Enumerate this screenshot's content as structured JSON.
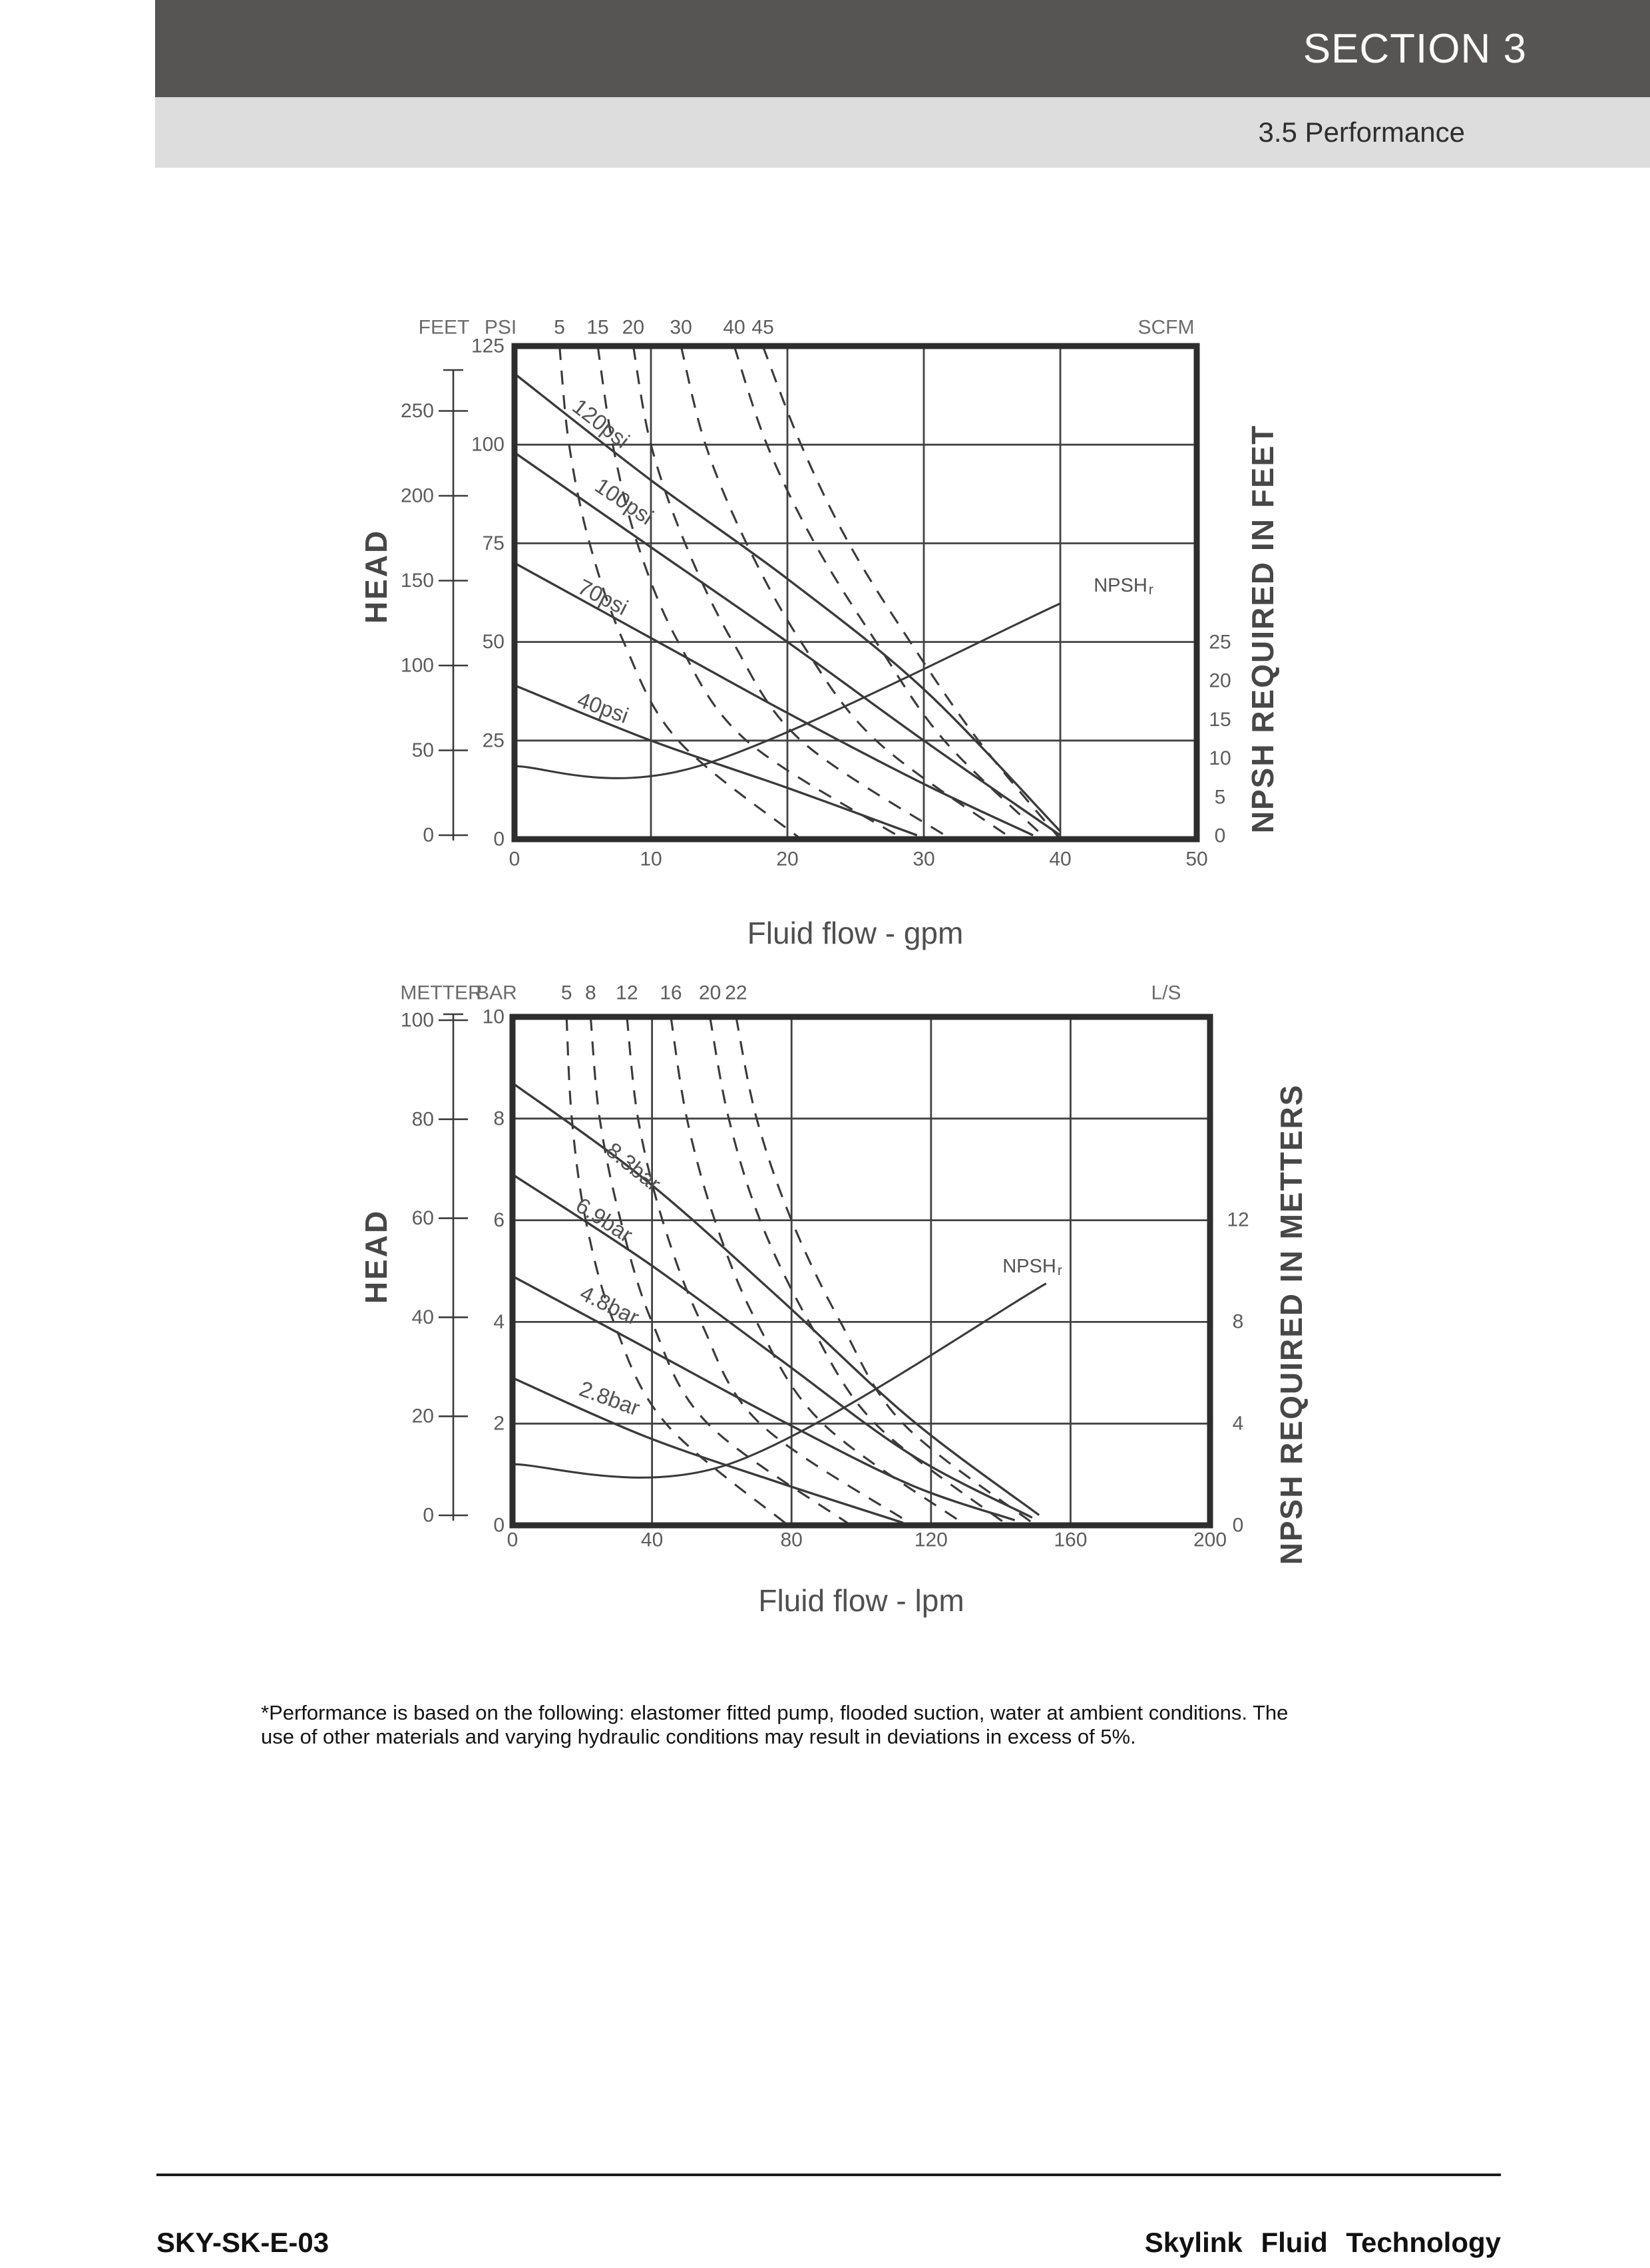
{
  "header": {
    "section": "SECTION 3",
    "subsection": "3.5 Performance"
  },
  "chart_data": [
    {
      "type": "line",
      "id": "imperial",
      "x_label": "Fluid flow - gpm",
      "x_range": [
        0,
        50
      ],
      "x_ticks": [
        0,
        10,
        20,
        30,
        40,
        50
      ],
      "head_axis": {
        "label": "HEAD",
        "inner_unit": "PSI",
        "inner_ticks": [
          0,
          25,
          50,
          75,
          100,
          125
        ],
        "inner_range": [
          0,
          125
        ],
        "outer_unit": "FEET",
        "outer_ticks": [
          0,
          50,
          100,
          150,
          200,
          250
        ]
      },
      "npsh_axis": {
        "title": "NPSH REQUIRED IN FEET",
        "ticks": [
          0,
          5,
          10,
          15,
          20,
          25
        ]
      },
      "air_axis": {
        "unit": "SCFM",
        "labels": [
          {
            "value": "5",
            "flow": 3.3
          },
          {
            "value": "15",
            "flow": 6.1
          },
          {
            "value": "20",
            "flow": 8.7
          },
          {
            "value": "30",
            "flow": 12.2
          },
          {
            "value": "40",
            "flow": 16.1
          },
          {
            "value": "45",
            "flow": 18.2
          }
        ]
      },
      "pressure_curves": [
        {
          "label": "120psi",
          "points": [
            [
              0,
              118
            ],
            [
              10,
              91
            ],
            [
              20,
              66
            ],
            [
              30,
              38
            ],
            [
              40,
              2
            ]
          ]
        },
        {
          "label": "100psi",
          "points": [
            [
              0,
              98
            ],
            [
              10,
              74
            ],
            [
              20,
              50
            ],
            [
              30,
              25
            ],
            [
              40,
              1
            ]
          ]
        },
        {
          "label": "70psi",
          "points": [
            [
              0,
              70
            ],
            [
              10,
              51
            ],
            [
              20,
              32
            ],
            [
              30,
              14
            ],
            [
              38,
              1
            ]
          ]
        },
        {
          "label": "40psi",
          "points": [
            [
              0,
              39
            ],
            [
              10,
              25
            ],
            [
              20,
              13
            ],
            [
              29.5,
              1
            ]
          ]
        }
      ],
      "air_curves": [
        {
          "label": "5",
          "points": [
            [
              3.3,
              125
            ],
            [
              4,
              100
            ],
            [
              5.5,
              75
            ],
            [
              8,
              50
            ],
            [
              12,
              25
            ],
            [
              21,
              0
            ]
          ]
        },
        {
          "label": "15",
          "points": [
            [
              6.1,
              125
            ],
            [
              7.2,
              100
            ],
            [
              9,
              75
            ],
            [
              12,
              50
            ],
            [
              17,
              25
            ],
            [
              28.5,
              0
            ]
          ]
        },
        {
          "label": "20",
          "points": [
            [
              8.7,
              125
            ],
            [
              10,
              100
            ],
            [
              12.5,
              75
            ],
            [
              16,
              50
            ],
            [
              21,
              25
            ],
            [
              32,
              0
            ]
          ]
        },
        {
          "label": "30",
          "points": [
            [
              12.2,
              125
            ],
            [
              14,
              100
            ],
            [
              17,
              75
            ],
            [
              21,
              50
            ],
            [
              26.5,
              25
            ],
            [
              36.5,
              0
            ]
          ]
        },
        {
          "label": "40",
          "points": [
            [
              16.1,
              125
            ],
            [
              18.5,
              100
            ],
            [
              22,
              75
            ],
            [
              26.5,
              50
            ],
            [
              31.5,
              25
            ],
            [
              39,
              0
            ]
          ]
        },
        {
          "label": "45",
          "points": [
            [
              18.2,
              125
            ],
            [
              21,
              100
            ],
            [
              24.5,
              75
            ],
            [
              29,
              50
            ],
            [
              34,
              25
            ],
            [
              40,
              0
            ]
          ]
        }
      ],
      "npshr": {
        "label": "NPSH",
        "label_sub": "r",
        "points_flow_npsh": [
          [
            0,
            9
          ],
          [
            13.5,
            9
          ],
          [
            40,
            30
          ]
        ]
      }
    },
    {
      "type": "line",
      "id": "metric",
      "x_label": "Fluid flow - lpm",
      "x_range": [
        0,
        200
      ],
      "x_ticks": [
        0,
        40,
        80,
        120,
        160,
        200
      ],
      "head_axis": {
        "label": "HEAD",
        "inner_unit": "BAR",
        "inner_ticks": [
          0,
          2,
          4,
          6,
          8,
          10
        ],
        "inner_range": [
          0,
          10
        ],
        "outer_unit": "METTER",
        "outer_ticks": [
          0,
          20,
          40,
          60,
          80,
          100
        ]
      },
      "npsh_axis": {
        "title": "NPSH REQUIRED IN METTERS",
        "ticks": [
          0,
          4,
          8,
          12
        ]
      },
      "air_axis": {
        "unit": "L/S",
        "labels": [
          {
            "value": "5",
            "flow": 15.5
          },
          {
            "value": "8",
            "flow": 22.4
          },
          {
            "value": "12",
            "flow": 32.8
          },
          {
            "value": "16",
            "flow": 45.4
          },
          {
            "value": "20",
            "flow": 56.6
          },
          {
            "value": "22",
            "flow": 64.1
          }
        ]
      },
      "pressure_curves": [
        {
          "label": "8.3bar",
          "points": [
            [
              0,
              8.7
            ],
            [
              38,
              6.8
            ],
            [
              76,
              4.5
            ],
            [
              114,
              2.1
            ],
            [
              151,
              0.2
            ]
          ]
        },
        {
          "label": "6.9bar",
          "points": [
            [
              0,
              6.9
            ],
            [
              38,
              5.2
            ],
            [
              76,
              3.3
            ],
            [
              114,
              1.4
            ],
            [
              149,
              0.15
            ]
          ]
        },
        {
          "label": "4.8bar",
          "points": [
            [
              0,
              4.9
            ],
            [
              38,
              3.5
            ],
            [
              76,
              2.1
            ],
            [
              114,
              0.8
            ],
            [
              144,
              0.1
            ]
          ]
        },
        {
          "label": "2.8bar",
          "points": [
            [
              0,
              2.9
            ],
            [
              38,
              1.75
            ],
            [
              76,
              0.85
            ],
            [
              112,
              0.05
            ]
          ]
        }
      ],
      "air_curves": [
        {
          "label": "5",
          "points": [
            [
              15.5,
              10
            ],
            [
              17,
              8
            ],
            [
              21,
              6
            ],
            [
              29,
              4
            ],
            [
              44,
              2
            ],
            [
              79,
              0
            ]
          ]
        },
        {
          "label": "8",
          "points": [
            [
              22.4,
              10
            ],
            [
              25,
              8
            ],
            [
              31,
              6
            ],
            [
              40,
              4
            ],
            [
              56,
              2
            ],
            [
              97,
              0
            ]
          ]
        },
        {
          "label": "12",
          "points": [
            [
              32.8,
              10
            ],
            [
              36,
              8
            ],
            [
              43,
              6
            ],
            [
              54,
              4
            ],
            [
              71,
              2
            ],
            [
              115,
              0
            ]
          ]
        },
        {
          "label": "16",
          "points": [
            [
              45.4,
              10
            ],
            [
              50,
              8
            ],
            [
              58,
              6
            ],
            [
              70,
              4
            ],
            [
              89,
              2
            ],
            [
              130,
              0
            ]
          ]
        },
        {
          "label": "20",
          "points": [
            [
              56.6,
              10
            ],
            [
              62,
              8
            ],
            [
              71,
              6
            ],
            [
              85,
              4
            ],
            [
              104,
              2
            ],
            [
              142,
              0
            ]
          ]
        },
        {
          "label": "22",
          "points": [
            [
              64.1,
              10
            ],
            [
              70,
              8
            ],
            [
              80,
              6
            ],
            [
              94,
              4
            ],
            [
              112,
              2
            ],
            [
              150,
              0
            ]
          ]
        }
      ],
      "npshr": {
        "label": "NPSH",
        "label_sub": "r",
        "points_flow_npsh": [
          [
            0,
            2.4
          ],
          [
            62,
            2.4
          ],
          [
            153,
            9.5
          ]
        ]
      }
    }
  ],
  "note": {
    "lines": [
      "*Performance is based on the following: elastomer fitted pump, flooded suction, water at ambient conditions. The",
      "use of other materials and varying hydraulic conditions may result in deviations in excess of 5%."
    ]
  },
  "footer": {
    "doc_code": "SKY-SK-E-03",
    "company": "Skylink Fluid Technology"
  }
}
